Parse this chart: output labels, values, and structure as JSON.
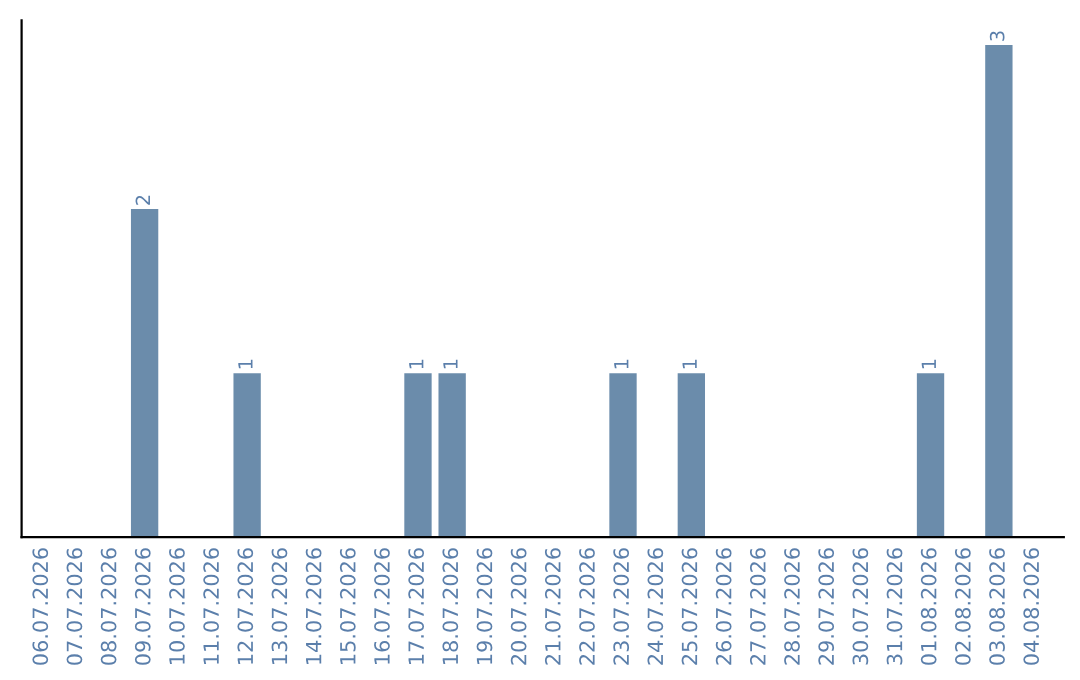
{
  "chart_data": {
    "type": "bar",
    "categories": [
      "06.07.2026",
      "07.07.2026",
      "08.07.2026",
      "09.07.2026",
      "10.07.2026",
      "11.07.2026",
      "12.07.2026",
      "13.07.2026",
      "14.07.2026",
      "15.07.2026",
      "16.07.2026",
      "17.07.2026",
      "18.07.2026",
      "19.07.2026",
      "20.07.2026",
      "21.07.2026",
      "22.07.2026",
      "23.07.2026",
      "24.07.2026",
      "25.07.2026",
      "26.07.2026",
      "27.07.2026",
      "28.07.2026",
      "29.07.2026",
      "30.07.2026",
      "31.07.2026",
      "01.08.2026",
      "02.08.2026",
      "03.08.2026",
      "04.08.2026"
    ],
    "values": [
      0,
      0,
      0,
      2,
      0,
      0,
      1,
      0,
      0,
      0,
      0,
      1,
      1,
      0,
      0,
      0,
      0,
      1,
      0,
      1,
      0,
      0,
      0,
      0,
      0,
      0,
      1,
      0,
      3,
      0
    ],
    "value_labels": [
      null,
      null,
      null,
      "2",
      null,
      null,
      "1",
      null,
      null,
      null,
      null,
      "1",
      "1",
      null,
      null,
      null,
      null,
      "1",
      null,
      "1",
      null,
      null,
      null,
      null,
      null,
      null,
      "1",
      null,
      "3",
      null
    ],
    "color": "#6b8cab",
    "tick_labels": "x",
    "grid": false
  }
}
